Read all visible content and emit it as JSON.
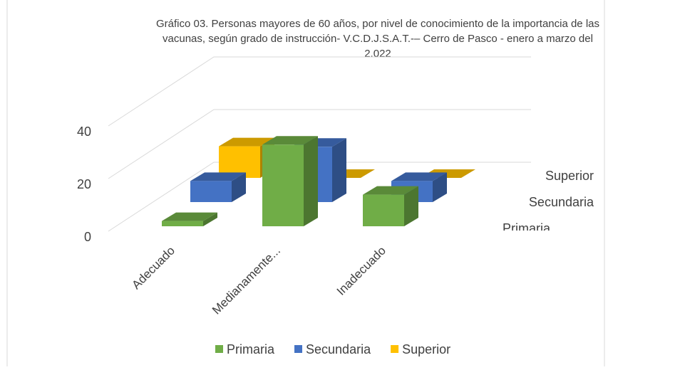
{
  "chart_data": {
    "type": "bar3d",
    "title": "Gráfico 03. Personas mayores de 60 años, por nivel de conocimiento de la importancia de las vacunas, según grado de instrucción- V.C.D.J.S.A.T.-– Cerro de Pasco - enero a marzo del 2.022",
    "categories": [
      "Adecuado",
      "Medianamente...",
      "Inadecuado"
    ],
    "series": [
      {
        "name": "Primaria",
        "color": "#70ad47",
        "values": [
          2,
          31,
          12
        ]
      },
      {
        "name": "Secundaria",
        "color": "#4472c4",
        "values": [
          8,
          21,
          8
        ]
      },
      {
        "name": "Superior",
        "color": "#ffc000",
        "values": [
          12,
          0,
          0
        ]
      }
    ],
    "ylim": [
      0,
      40
    ],
    "yticks": [
      0,
      20,
      40
    ],
    "grid": true,
    "legend": "bottom"
  }
}
